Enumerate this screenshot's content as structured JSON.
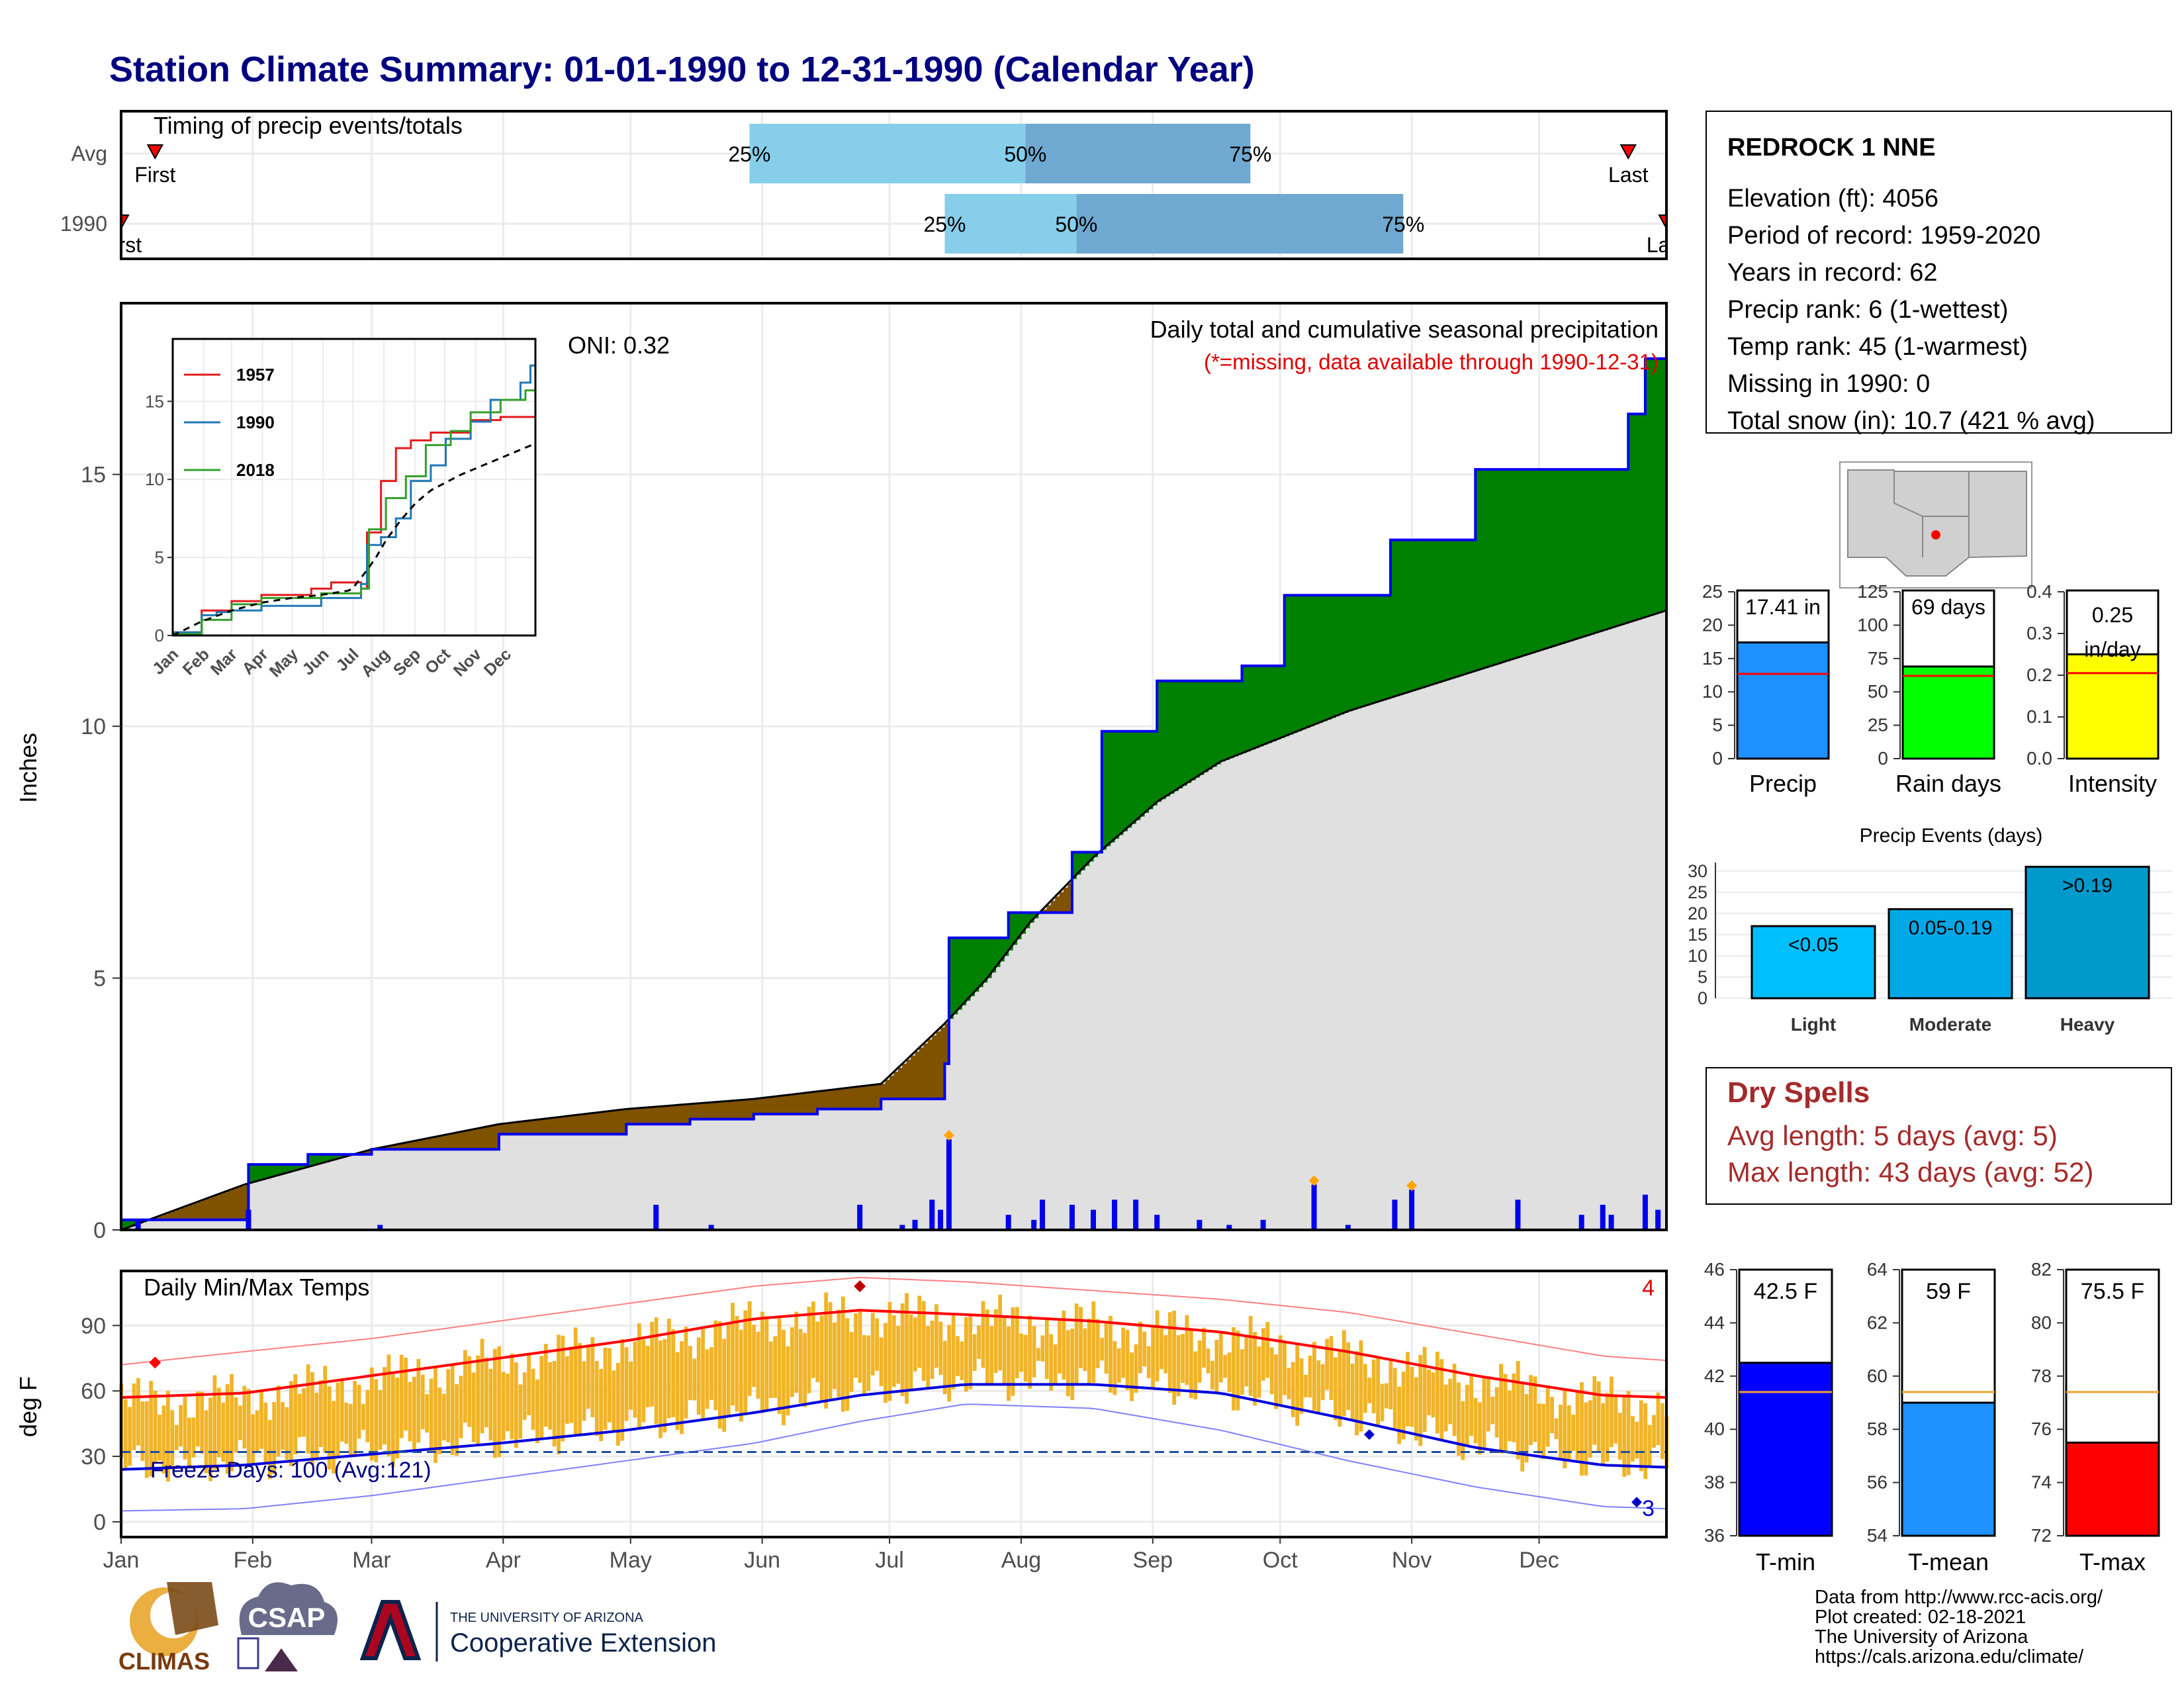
{
  "title": "Station Climate Summary: 01-01-1990 to 12-31-1990 (Calendar Year)",
  "months": [
    "Jan",
    "Feb",
    "Mar",
    "Apr",
    "May",
    "Jun",
    "Jul",
    "Aug",
    "Sep",
    "Oct",
    "Nov",
    "Dec"
  ],
  "timing": {
    "label": "Timing of precip events/totals",
    "rows": [
      {
        "name": "Avg",
        "first_label": "First",
        "last_label": "Last",
        "p25": "25%",
        "p50": "50%",
        "p75": "75%",
        "first_doy": 9,
        "last_doy": 356,
        "p25_doy": 149,
        "p50_doy": 214,
        "p75_doy": 267
      },
      {
        "name": "1990",
        "first_label": "First",
        "last_label": "Last",
        "p25": "25%",
        "p50": "50%",
        "p75": "75%",
        "first_doy": 1,
        "last_doy": 365,
        "p25_doy": 195,
        "p50_doy": 226,
        "p75_doy": 303
      }
    ]
  },
  "precip_panel": {
    "ylabel": "Inches",
    "oni": "ONI: 0.32",
    "note1": "Daily total and cumulative seasonal precipitation",
    "note2": "(*=missing, data available through 1990-12-31)",
    "yticks": [
      "0",
      "5",
      "10",
      "15"
    ],
    "colors": {
      "above": "#008000",
      "below": "#7f5200",
      "avg_fill": "#e0e0e0",
      "obs_line": "#0000ee",
      "bars": "#0000ee"
    }
  },
  "inset": {
    "yticks": [
      "0",
      "5",
      "10",
      "15"
    ],
    "legend": [
      {
        "name": "1957",
        "color": "#e31a1c"
      },
      {
        "name": "1990",
        "color": "#1f78b4"
      },
      {
        "name": "2018",
        "color": "#33a02c"
      }
    ]
  },
  "temp_panel": {
    "ylabel": "deg F",
    "title": "Daily Min/Max Temps",
    "freeze": "Freeze Days: 100 (Avg:121)",
    "count_hot": "4",
    "count_cold": "3",
    "yticks": [
      "0",
      "30",
      "60",
      "90"
    ]
  },
  "station": {
    "name": "REDROCK 1 NNE",
    "lines": [
      "Elevation (ft): 4056",
      "Period of record: 1959-2020",
      "Years in record: 62",
      "Precip rank: 6 (1-wettest)",
      "Temp rank: 45 (1-warmest)",
      "Missing in 1990: 0",
      "Total snow (in): 10.7 (421 % avg)"
    ]
  },
  "mini_bars": [
    {
      "name": "Precip",
      "label": "17.41 in",
      "value": 17.41,
      "avg": 12.7,
      "max": 25,
      "ticks": [
        "0",
        "5",
        "10",
        "15",
        "20",
        "25"
      ],
      "color": "#1e90ff"
    },
    {
      "name": "Rain days",
      "label": "69 days",
      "value": 69,
      "avg": 62,
      "max": 125,
      "ticks": [
        "0",
        "25",
        "50",
        "75",
        "100",
        "125"
      ],
      "color": "#00ff00"
    },
    {
      "name": "Intensity",
      "label": "0.25 in/day",
      "value": 0.25,
      "avg": 0.205,
      "max": 0.4,
      "ticks": [
        "0.0",
        "0.1",
        "0.2",
        "0.3",
        "0.4"
      ],
      "color": "#ffff00"
    }
  ],
  "events": {
    "title": "Precip Events (days)",
    "ticks": [
      "0",
      "5",
      "10",
      "15",
      "20",
      "25",
      "30"
    ],
    "bars": [
      {
        "name": "Light",
        "label": "<0.05",
        "value": 17,
        "color": "#00bfff"
      },
      {
        "name": "Moderate",
        "label": "0.05-0.19",
        "value": 21,
        "color": "#00a8e8"
      },
      {
        "name": "Heavy",
        "label": ">0.19",
        "value": 31,
        "color": "#0099cc"
      }
    ]
  },
  "dry_spells": {
    "title": "Dry Spells",
    "avg": "Avg length: 5 days (avg: 5)",
    "max": "Max length: 43 days (avg: 52)"
  },
  "temp_bars": [
    {
      "name": "T-min",
      "label": "42.5 F",
      "value": 42.5,
      "avg": 41.4,
      "min": 36,
      "max": 46,
      "ticks": [
        "36",
        "38",
        "40",
        "42",
        "44",
        "46"
      ],
      "color": "#0000ff"
    },
    {
      "name": "T-mean",
      "label": "59 F",
      "value": 59,
      "avg": 59.4,
      "min": 54,
      "max": 64,
      "ticks": [
        "54",
        "56",
        "58",
        "60",
        "62",
        "64"
      ],
      "color": "#1e90ff"
    },
    {
      "name": "T-max",
      "label": "75.5 F",
      "value": 75.5,
      "avg": 77.4,
      "min": 72,
      "max": 82,
      "ticks": [
        "72",
        "74",
        "76",
        "78",
        "80",
        "82"
      ],
      "color": "#ff0000"
    }
  ],
  "footer": {
    "lines": [
      "Data from http://www.rcc-acis.org/",
      "Plot created: 02-18-2021",
      "The University of Arizona",
      "https://cals.arizona.edu/climate/"
    ],
    "logo1": "CLIMAS",
    "logo2": "CSAP",
    "ua_small": "THE UNIVERSITY OF ARIZONA",
    "ua_big": "Cooperative Extension"
  },
  "chart_data": [
    {
      "type": "area",
      "title": "Daily total and cumulative seasonal precipitation",
      "ylabel": "Inches",
      "ylim": [
        0,
        18.4
      ],
      "series": [
        {
          "name": "observed cumulative",
          "x": [
            1,
            30,
            31,
            45,
            60,
            90,
            120,
            135,
            150,
            165,
            180,
            195,
            196,
            210,
            225,
            232,
            245,
            265,
            275,
            300,
            320,
            335,
            352,
            356,
            360,
            365
          ],
          "values": [
            0.2,
            0.2,
            1.3,
            1.5,
            1.6,
            1.9,
            2.1,
            2.2,
            2.3,
            2.4,
            2.6,
            3.3,
            5.8,
            6.3,
            7.5,
            9.9,
            10.9,
            11.2,
            12.6,
            13.7,
            15.1,
            15.1,
            15.1,
            16.2,
            17.3,
            17.41
          ]
        },
        {
          "name": "average cumulative",
          "x": [
            1,
            30,
            60,
            90,
            120,
            150,
            180,
            195,
            205,
            215,
            230,
            245,
            260,
            275,
            290,
            305,
            320,
            335,
            350,
            365
          ],
          "values": [
            0.0,
            0.9,
            1.6,
            2.1,
            2.4,
            2.6,
            2.9,
            4.1,
            5.0,
            6.1,
            7.4,
            8.5,
            9.3,
            9.8,
            10.3,
            10.7,
            11.1,
            11.5,
            11.9,
            12.3
          ]
        }
      ],
      "daily_bars": {
        "x": [
          5,
          31,
          62,
          127,
          140,
          175,
          185,
          188,
          192,
          194,
          196,
          210,
          216,
          218,
          225,
          230,
          235,
          240,
          245,
          255,
          262,
          270,
          282,
          290,
          301,
          305,
          330,
          345,
          350,
          352,
          360,
          363
        ],
        "values": [
          0.2,
          0.4,
          0.1,
          0.5,
          0.1,
          0.5,
          0.1,
          0.2,
          0.6,
          0.4,
          1.8,
          0.3,
          0.2,
          0.6,
          0.5,
          0.4,
          0.6,
          0.6,
          0.3,
          0.2,
          0.1,
          0.2,
          0.9,
          0.1,
          0.6,
          0.8,
          0.6,
          0.3,
          0.5,
          0.3,
          0.7,
          0.4
        ]
      }
    },
    {
      "type": "line",
      "title": "Daily Min/Max Temps",
      "ylabel": "deg F",
      "ylim": [
        -7,
        115
      ],
      "freeze_line": 32,
      "series": [
        {
          "name": "avg max",
          "x": [
            1,
            30,
            60,
            90,
            120,
            150,
            175,
            200,
            230,
            260,
            290,
            320,
            350,
            365
          ],
          "values": [
            57,
            59,
            67,
            75,
            83,
            93,
            97,
            95,
            92,
            87,
            78,
            67,
            58,
            57
          ]
        },
        {
          "name": "avg min",
          "x": [
            1,
            30,
            60,
            90,
            120,
            150,
            175,
            200,
            230,
            260,
            290,
            320,
            350,
            365
          ],
          "values": [
            24,
            26,
            31,
            36,
            42,
            50,
            58,
            63,
            63,
            59,
            47,
            34,
            26,
            25
          ]
        },
        {
          "name": "record high",
          "x": [
            1,
            30,
            60,
            90,
            120,
            150,
            175,
            200,
            230,
            260,
            290,
            320,
            350,
            365
          ],
          "values": [
            72,
            78,
            84,
            92,
            100,
            108,
            112,
            110,
            106,
            102,
            96,
            86,
            76,
            74
          ]
        },
        {
          "name": "record low",
          "x": [
            1,
            30,
            60,
            90,
            120,
            150,
            175,
            200,
            230,
            260,
            290,
            320,
            350,
            365
          ],
          "values": [
            5,
            6,
            12,
            20,
            28,
            36,
            46,
            54,
            52,
            42,
            28,
            16,
            7,
            6
          ]
        }
      ]
    }
  ]
}
